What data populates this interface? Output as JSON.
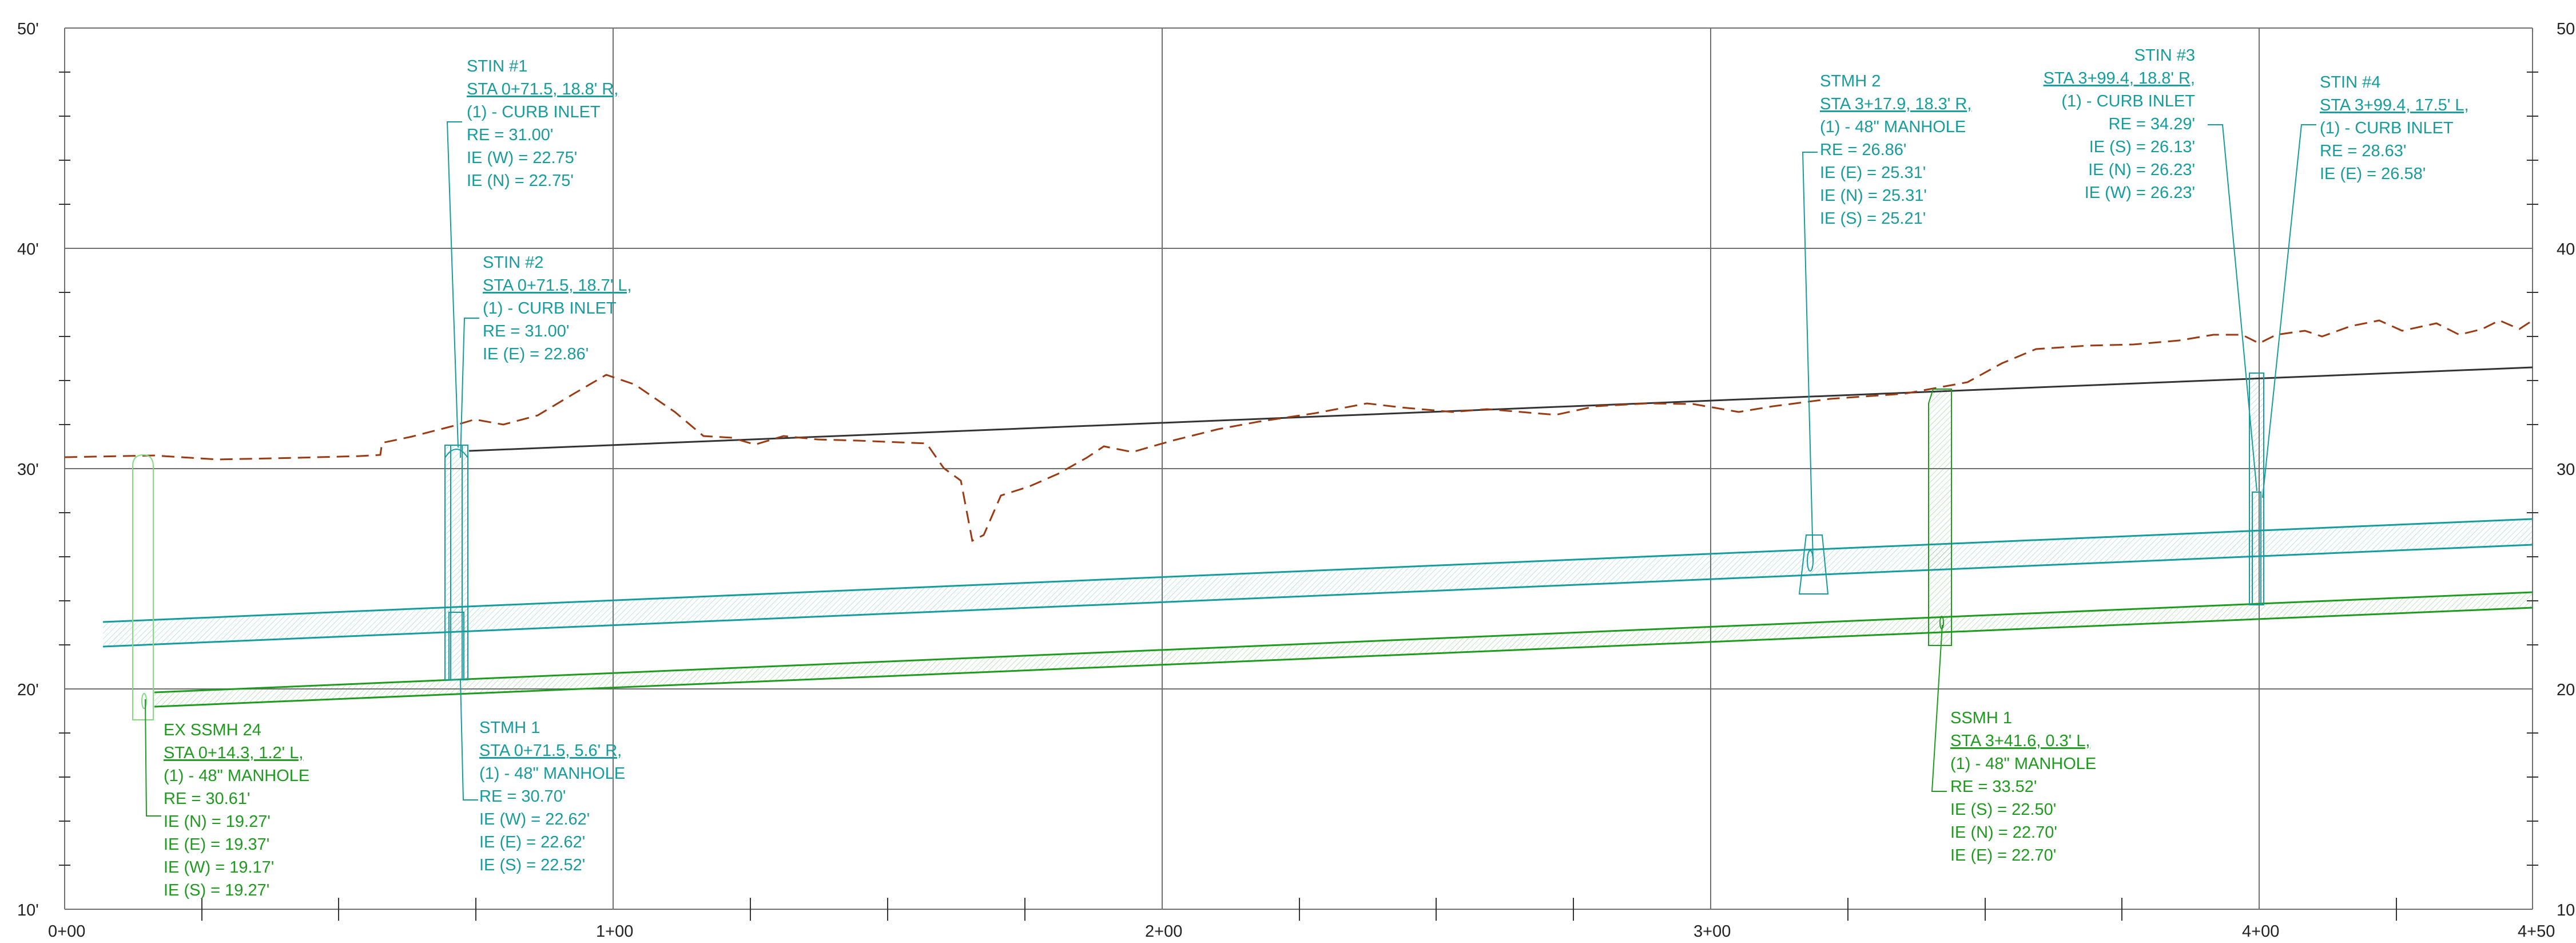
{
  "profile": {
    "colors": {
      "grid": "#6e6e6e",
      "storm": "#169c9c",
      "sanitary": "#1e9a1e",
      "existing_ground": "#9a3a12",
      "proposed_grade": "#333333",
      "background": "#ffffff"
    },
    "y_axis_left": [
      "10'",
      "20'",
      "30'",
      "40'",
      "50'"
    ],
    "y_axis_right": [
      "10",
      "20",
      "30",
      "40",
      "50"
    ],
    "x_axis": [
      "0+00",
      "1+00",
      "2+00",
      "3+00",
      "4+00",
      "4+50"
    ],
    "callouts": [
      {
        "id": "stin-1",
        "title": "STIN #1",
        "station": "STA 0+71.5, 18.8' R,",
        "lines": [
          "(1) - CURB INLET",
          "RE = 31.00'",
          "IE (W) = 22.75'",
          "IE (N) = 22.75'"
        ]
      },
      {
        "id": "stin-2",
        "title": "STIN #2",
        "station": "STA 0+71.5, 18.7' L,",
        "lines": [
          "(1) - CURB INLET",
          "RE = 31.00'",
          "IE (E) = 22.86'"
        ]
      },
      {
        "id": "stmh-1",
        "title": "STMH 1",
        "station": "STA 0+71.5, 5.6' R,",
        "lines": [
          "(1) - 48\" MANHOLE",
          "RE = 30.70'",
          "IE (W) = 22.62'",
          "IE (E) = 22.62'",
          "IE (S) = 22.52'"
        ]
      },
      {
        "id": "ex-ssmh-24",
        "title": "EX SSMH 24",
        "station": "STA 0+14.3, 1.2' L,",
        "lines": [
          "(1) - 48\" MANHOLE",
          "RE = 30.61'",
          "IE (N) = 19.27'",
          "IE (E) = 19.37'",
          "IE (W) = 19.17'",
          "IE (S) = 19.27'"
        ]
      },
      {
        "id": "stmh-2",
        "title": "STMH 2",
        "station": "STA 3+17.9, 18.3' R,",
        "lines": [
          "(1) - 48\" MANHOLE",
          "RE = 26.86'",
          "IE (E) = 25.31'",
          "IE (N) = 25.31'",
          "IE (S) = 25.21'"
        ]
      },
      {
        "id": "stin-3",
        "title": "STIN #3",
        "station": "STA 3+99.4, 18.8' R,",
        "lines": [
          "(1) - CURB INLET",
          "RE = 34.29'",
          "IE (S) = 26.13'",
          "IE (N) = 26.23'",
          "IE (W) = 26.23'"
        ]
      },
      {
        "id": "stin-4",
        "title": "STIN #4",
        "station": "STA 3+99.4, 17.5' L,",
        "lines": [
          "(1) - CURB INLET",
          "RE = 28.63'",
          "IE (E) = 26.58'"
        ]
      },
      {
        "id": "ssmh-1",
        "title": "SSMH 1",
        "station": "STA 3+41.6, 0.3' L,",
        "lines": [
          "(1) - 48\" MANHOLE",
          "RE = 33.52'",
          "IE (S) = 22.50'",
          "IE (N) = 22.70'",
          "IE (E) = 22.70'"
        ]
      }
    ]
  }
}
